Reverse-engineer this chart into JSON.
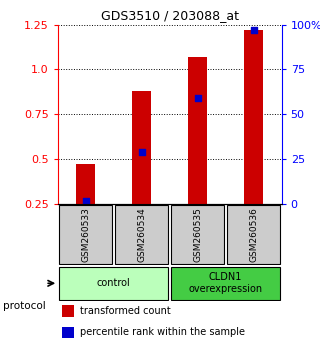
{
  "title": "GDS3510 / 203088_at",
  "samples": [
    "GSM260533",
    "GSM260534",
    "GSM260535",
    "GSM260536"
  ],
  "transformed_counts": [
    0.47,
    0.88,
    1.07,
    1.22
  ],
  "percentile_ranks_pct": [
    1.5,
    29.0,
    59.0,
    97.0
  ],
  "groups": [
    {
      "label": "control",
      "samples": [
        0,
        1
      ],
      "color": "#bbffbb"
    },
    {
      "label": "CLDN1\noverexpression",
      "samples": [
        2,
        3
      ],
      "color": "#44cc44"
    }
  ],
  "ylim_left": [
    0.25,
    1.25
  ],
  "ylim_right": [
    0,
    100
  ],
  "yticks_left": [
    0.25,
    0.5,
    0.75,
    1.0,
    1.25
  ],
  "yticks_right": [
    0,
    25,
    50,
    75,
    100
  ],
  "ytick_labels_right": [
    "0",
    "25",
    "50",
    "75",
    "100%"
  ],
  "bar_color": "#cc0000",
  "dot_color": "#0000cc",
  "background_color": "#ffffff",
  "sample_box_color": "#cccccc",
  "protocol_label": "protocol",
  "legend_items": [
    {
      "color": "#cc0000",
      "label": "transformed count"
    },
    {
      "color": "#0000cc",
      "label": "percentile rank within the sample"
    }
  ]
}
